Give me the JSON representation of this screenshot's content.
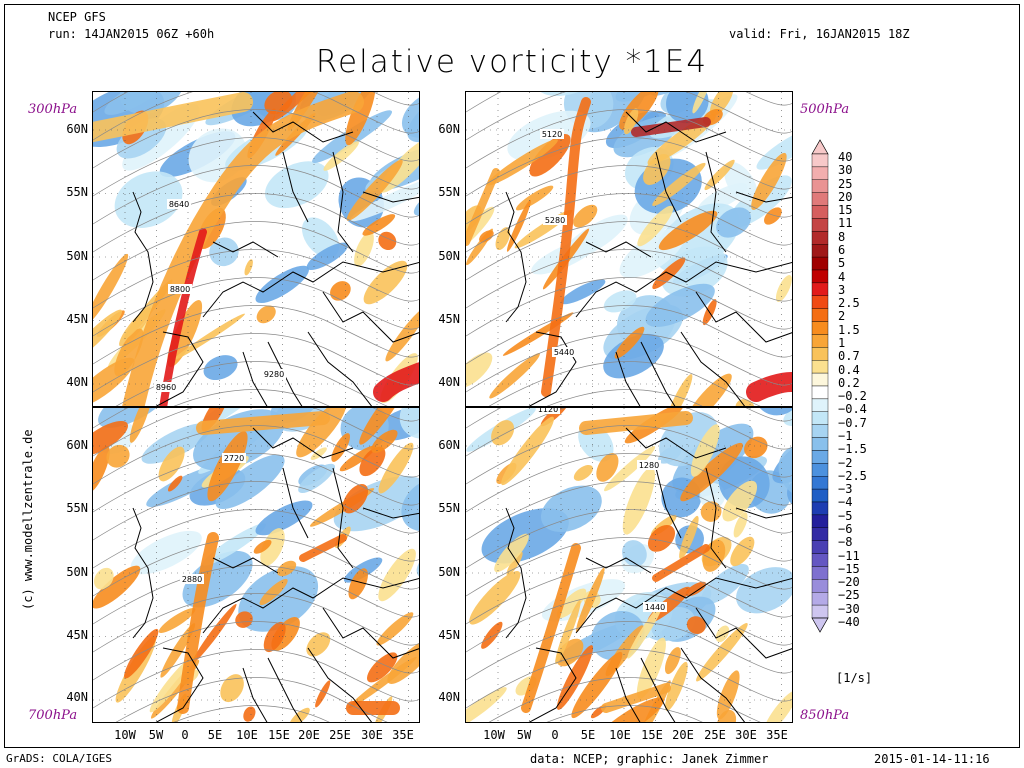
{
  "header": {
    "model": "NCEP GFS",
    "run": "run: 14JAN2015 06Z +60h",
    "valid": "valid: Fri, 16JAN2015 18Z",
    "title": "Relative vorticity *1E4"
  },
  "levels": {
    "p300": "300hPa",
    "p500": "500hPa",
    "p700": "700hPa",
    "p850": "850hPa"
  },
  "latitudes_top": [
    "60N",
    "55N",
    "50N",
    "45N",
    "40N"
  ],
  "latitudes_bottom": [
    "60N",
    "55N",
    "50N",
    "45N",
    "40N"
  ],
  "longitudes": [
    "10W",
    "5W",
    "0",
    "5E",
    "10E",
    "15E",
    "20E",
    "25E",
    "30E",
    "35E"
  ],
  "contour_labels": {
    "p300": [
      "8640",
      "8800",
      "8960",
      "9280"
    ],
    "p500": [
      "5120",
      "5280",
      "5440"
    ],
    "p700": [
      "2720",
      "2880"
    ],
    "p850": [
      "1120",
      "1280",
      "1440"
    ]
  },
  "colorbar": {
    "labels": [
      "40",
      "30",
      "25",
      "20",
      "15",
      "11",
      "8",
      "6",
      "5",
      "4",
      "3",
      "2.5",
      "2",
      "1.5",
      "1",
      "0.7",
      "0.4",
      "0.2",
      "-0.2",
      "-0.4",
      "-0.7",
      "-1",
      "-1.5",
      "-2",
      "-2.5",
      "-3",
      "-4",
      "-5",
      "-6",
      "-8",
      "-11",
      "-15",
      "-20",
      "-25",
      "-30",
      "-40"
    ],
    "colors": [
      "#f7c9c9",
      "#f2aeae",
      "#e99393",
      "#e07a7a",
      "#d65f5f",
      "#c44444",
      "#b22a2a",
      "#a01818",
      "#a00000",
      "#c00000",
      "#e21a1a",
      "#f04a14",
      "#f46e14",
      "#f78c1e",
      "#f8a537",
      "#f9c25a",
      "#fbe08f",
      "#fdf7dc",
      "#ffffff",
      "#dff3fb",
      "#c3e7f7",
      "#a7d4f2",
      "#89c0ec",
      "#6aa9e6",
      "#4c91de",
      "#3478d4",
      "#1f5ec5",
      "#1e3db2",
      "#241f9c",
      "#332ba4",
      "#4a40b3",
      "#6457c2",
      "#7e70cf",
      "#998ddb",
      "#b4aae7",
      "#cec6f0"
    ],
    "units": "[1/s]"
  },
  "side_text": "(c) www.modellzentrale.de",
  "footer": {
    "left": "GrADS: COLA/IGES",
    "center": "data: NCEP; graphic: Janek Zimmer",
    "right": "2015-01-14-11:16"
  }
}
